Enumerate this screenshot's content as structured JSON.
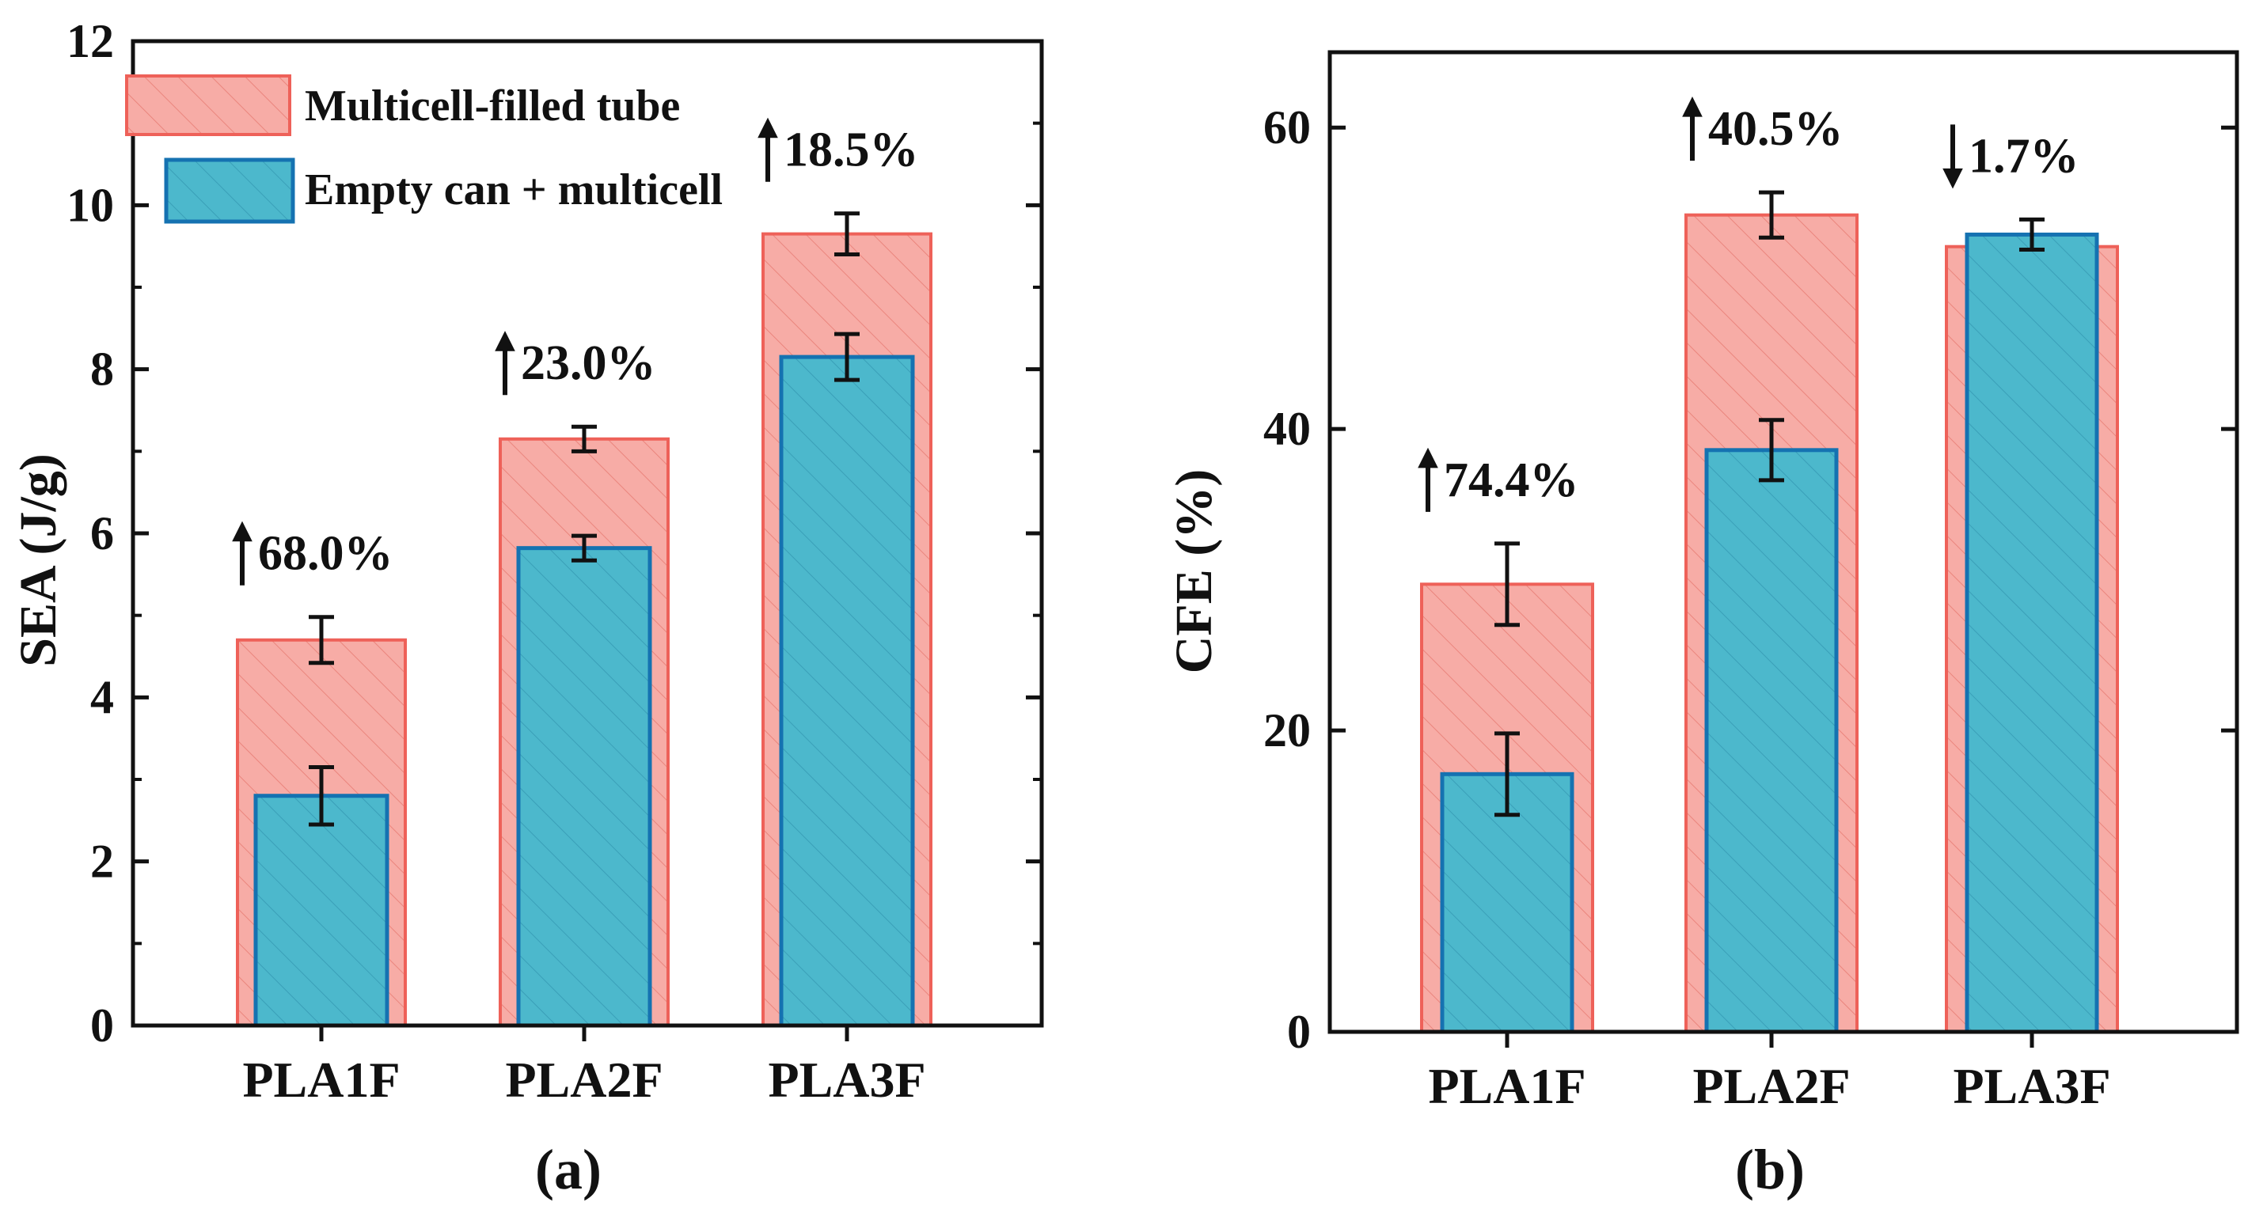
{
  "colors": {
    "fill_series": "#f7aca6",
    "fill_series_stroke": "#ee6159",
    "fill_series_hatch": "#ea857d",
    "empty_series": "#4cb8cc",
    "empty_series_stroke": "#1572b1",
    "empty_series_hatch": "#3a9fb8",
    "axis": "#111111"
  },
  "chart_data": [
    {
      "type": "bar",
      "panel_label": "(a)",
      "ylabel": "SEA (J/g)",
      "xlabel": "",
      "ylim": [
        0,
        12
      ],
      "yticks": [
        0,
        2,
        4,
        6,
        8,
        10,
        12
      ],
      "categories": [
        "PLA1F",
        "PLA2F",
        "PLA3F"
      ],
      "series": [
        {
          "name": "Multicell-filled tube",
          "values": [
            4.7,
            7.15,
            9.65
          ],
          "errors": [
            0.28,
            0.15,
            0.25
          ]
        },
        {
          "name": "Empty can + multicell",
          "values": [
            2.8,
            5.82,
            8.15
          ],
          "errors": [
            0.35,
            0.15,
            0.28
          ]
        }
      ],
      "legend": {
        "position": "top-left",
        "entries": [
          "Multicell-filled tube",
          "Empty can + multicell"
        ]
      },
      "annotations": [
        {
          "category": "PLA1F",
          "direction": "up",
          "text": "68.0%"
        },
        {
          "category": "PLA2F",
          "direction": "up",
          "text": "23.0%"
        },
        {
          "category": "PLA3F",
          "direction": "up",
          "text": "18.5%"
        }
      ]
    },
    {
      "type": "bar",
      "panel_label": "(b)",
      "ylabel": "CFE (%)",
      "xlabel": "",
      "ylim": [
        0,
        65
      ],
      "yticks": [
        0,
        20,
        40,
        60
      ],
      "categories": [
        "PLA1F",
        "PLA2F",
        "PLA3F"
      ],
      "series": [
        {
          "name": "Multicell-filled tube",
          "values": [
            29.7,
            54.2,
            52.1
          ],
          "errors": [
            2.7,
            1.5,
            0.0
          ]
        },
        {
          "name": "Empty can + multicell",
          "values": [
            17.1,
            38.6,
            52.9
          ],
          "errors": [
            2.7,
            2.0,
            1.0
          ]
        }
      ],
      "legend": null,
      "annotations": [
        {
          "category": "PLA1F",
          "direction": "up",
          "text": "74.4%"
        },
        {
          "category": "PLA2F",
          "direction": "up",
          "text": "40.5%"
        },
        {
          "category": "PLA3F",
          "direction": "down",
          "text": "1.7%"
        }
      ]
    }
  ]
}
